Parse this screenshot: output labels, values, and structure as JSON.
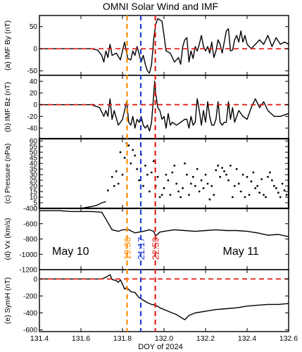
{
  "chart_data": {
    "type": "line",
    "title": "OMNI Solar Wind and IMF",
    "xlabel": "DOY of 2024",
    "xlim": [
      131.4,
      132.6
    ],
    "xticks": [
      131.4,
      131.6,
      131.8,
      132.0,
      132.2,
      132.4,
      132.6
    ],
    "xtick_labels": [
      "131.4",
      "131.6",
      "131.8",
      "132.0",
      "132.2",
      "132.4",
      "132.6"
    ],
    "event_lines": [
      {
        "x": 131.822,
        "label": "19:36",
        "color": "#ff8c00"
      },
      {
        "x": 131.888,
        "label": "21:17",
        "color": "#1f3fd6"
      },
      {
        "x": 131.958,
        "label": "22:59",
        "color": "#e0201b"
      }
    ],
    "date_labels": [
      {
        "text": "May 10",
        "x": 131.55
      },
      {
        "text": "May 11",
        "x": 132.37
      }
    ],
    "panels": [
      {
        "ylabel": "(a) IMF By (nT)",
        "ylim": [
          -60,
          75
        ],
        "yticks": [
          -50,
          0,
          50
        ],
        "zero_line": 0,
        "series": [
          {
            "style": "line",
            "x": [
              131.4,
              131.55,
              131.65,
              131.68,
              131.7,
              131.71,
              131.72,
              131.73,
              131.74,
              131.75,
              131.77,
              131.79,
              131.81,
              131.825,
              131.84,
              131.85,
              131.86,
              131.87,
              131.88,
              131.89,
              131.9,
              131.91,
              131.92,
              131.93,
              131.94,
              131.95,
              131.96,
              131.97,
              131.99,
              132.0,
              132.01,
              132.03,
              132.05,
              132.07,
              132.08,
              132.09,
              132.1,
              132.11,
              132.12,
              132.13,
              132.14,
              132.15,
              132.16,
              132.17,
              132.18,
              132.19,
              132.2,
              132.21,
              132.22,
              132.23,
              132.24,
              132.25,
              132.26,
              132.27,
              132.28,
              132.3,
              132.31,
              132.32,
              132.33,
              132.34,
              132.35,
              132.36,
              132.37,
              132.38,
              132.39,
              132.4,
              132.42,
              132.44,
              132.46,
              132.48,
              132.5,
              132.52,
              132.54,
              132.56,
              132.58,
              132.6
            ],
            "y": [
              0,
              0,
              0,
              -3,
              -15,
              -30,
              -5,
              -20,
              10,
              -15,
              -10,
              -25,
              15,
              -22,
              -25,
              -5,
              -15,
              5,
              -12,
              -30,
              -15,
              -35,
              -50,
              -55,
              -35,
              20,
              55,
              68,
              62,
              30,
              -5,
              -10,
              -30,
              -20,
              -35,
              5,
              20,
              25,
              -30,
              -5,
              -22,
              5,
              -5,
              10,
              30,
              5,
              -5,
              5,
              -10,
              15,
              -20,
              -5,
              20,
              10,
              -10,
              40,
              45,
              -5,
              -3,
              20,
              30,
              15,
              40,
              15,
              30,
              10,
              0,
              10,
              20,
              10,
              30,
              5,
              25,
              10,
              15,
              10
            ]
          }
        ]
      },
      {
        "ylabel": "(b) IMF Bz (nT)",
        "ylim": [
          -58,
          50
        ],
        "yticks": [
          -40,
          -20,
          0,
          20,
          40
        ],
        "zero_line": 0,
        "series": [
          {
            "style": "line",
            "x": [
              131.4,
              131.55,
              131.65,
              131.69,
              131.71,
              131.72,
              131.73,
              131.74,
              131.75,
              131.76,
              131.78,
              131.8,
              131.82,
              131.83,
              131.84,
              131.85,
              131.86,
              131.87,
              131.88,
              131.89,
              131.9,
              131.91,
              131.92,
              131.93,
              131.94,
              131.95,
              131.955,
              131.96,
              131.97,
              131.98,
              131.99,
              132.0,
              132.01,
              132.02,
              132.03,
              132.04,
              132.06,
              132.08,
              132.1,
              132.11,
              132.12,
              132.13,
              132.14,
              132.15,
              132.16,
              132.17,
              132.18,
              132.19,
              132.2,
              132.21,
              132.22,
              132.23,
              132.24,
              132.25,
              132.26,
              132.27,
              132.28,
              132.29,
              132.3,
              132.31,
              132.32,
              132.33,
              132.34,
              132.36,
              132.38,
              132.4,
              132.42,
              132.44,
              132.46,
              132.48,
              132.5,
              132.53,
              132.56,
              132.6
            ],
            "y": [
              0,
              0,
              0,
              -5,
              -20,
              -10,
              -20,
              10,
              -25,
              -10,
              -35,
              -25,
              5,
              -30,
              -35,
              -20,
              -40,
              -25,
              -30,
              -20,
              -35,
              -40,
              -35,
              -45,
              -30,
              15,
              40,
              20,
              -5,
              -10,
              -25,
              -20,
              -40,
              -15,
              -35,
              -30,
              -35,
              -30,
              -25,
              -25,
              -40,
              -20,
              -35,
              -30,
              10,
              -10,
              -35,
              -10,
              -30,
              5,
              -20,
              -35,
              -35,
              -25,
              5,
              -30,
              -35,
              -30,
              -30,
              5,
              -25,
              -5,
              -30,
              -10,
              -20,
              -25,
              -5,
              10,
              -5,
              5,
              -10,
              -20,
              -20,
              -15
            ]
          }
        ]
      },
      {
        "ylabel": "(c) Pressure (nPa)",
        "ylim": [
          0,
          62
        ],
        "yticks": [
          0,
          5,
          10,
          15,
          20,
          25,
          30,
          35,
          40,
          45,
          50,
          55,
          60
        ],
        "series": [
          {
            "style": "line",
            "x": [
              131.4,
              131.5,
              131.6,
              131.63,
              131.66,
              131.68,
              131.7,
              131.72
            ],
            "y": [
              0,
              0,
              0,
              1,
              2,
              3,
              5,
              6
            ]
          },
          {
            "style": "dots",
            "x": [
              131.73,
              131.75,
              131.76,
              131.77,
              131.78,
              131.79,
              131.8,
              131.81,
              131.82,
              131.83,
              131.84,
              131.85,
              131.86,
              131.87,
              131.88,
              131.89,
              131.9,
              131.91,
              131.92,
              131.93,
              131.94,
              131.95,
              131.96,
              131.97,
              131.98,
              131.99,
              132.0,
              132.01,
              132.02,
              132.03,
              132.04,
              132.05,
              132.06,
              132.07,
              132.08,
              132.09,
              132.1,
              132.11,
              132.12,
              132.13,
              132.14,
              132.15,
              132.16,
              132.17,
              132.18,
              132.19,
              132.2,
              132.21,
              132.22,
              132.23,
              132.24,
              132.25,
              132.26,
              132.27,
              132.28,
              132.29,
              132.3,
              132.31,
              132.32,
              132.33,
              132.34,
              132.35,
              132.36,
              132.37,
              132.38,
              132.39,
              132.4,
              132.41,
              132.42,
              132.43,
              132.44,
              132.45,
              132.46,
              132.47,
              132.48,
              132.49,
              132.5,
              132.51,
              132.52,
              132.53,
              132.54,
              132.55,
              132.56,
              132.57,
              132.58,
              132.59,
              132.6
            ],
            "y": [
              16,
              28,
              20,
              33,
              22,
              50,
              30,
              45,
              58,
              56,
              40,
              52,
              47,
              35,
              25,
              48,
              20,
              38,
              30,
              15,
              32,
              42,
              20,
              28,
              10,
              12,
              18,
              30,
              25,
              12,
              32,
              38,
              22,
              15,
              10,
              18,
              40,
              30,
              12,
              22,
              28,
              20,
              35,
              15,
              25,
              18,
              30,
              22,
              8,
              20,
              12,
              34,
              38,
              28,
              36,
              33,
              30,
              25,
              38,
              10,
              20,
              35,
              22,
              15,
              30,
              10,
              28,
              12,
              24,
              32,
              18,
              20,
              14,
              26,
              12,
              10,
              28,
              32,
              25,
              20,
              18,
              14,
              10,
              22,
              16,
              12,
              18
            ]
          }
        ]
      },
      {
        "ylabel": "(d) Vx (km/s)",
        "ylim": [
          -1200,
          -400
        ],
        "yticks": [
          -1200,
          -1000,
          -800,
          -600,
          -400
        ],
        "series": [
          {
            "style": "line",
            "x": [
              131.4,
              131.45,
              131.5,
              131.55,
              131.6,
              131.65,
              131.7,
              131.72,
              131.75,
              131.78,
              131.8,
              131.83,
              131.86,
              131.9,
              131.93,
              131.95,
              131.96,
              131.98,
              132.0,
              132.05,
              132.1,
              132.15,
              132.2,
              132.25,
              132.3,
              132.35,
              132.4,
              132.45,
              132.5,
              132.55,
              132.6
            ],
            "y": [
              -430,
              -430,
              -430,
              -440,
              -440,
              -440,
              -450,
              -540,
              -680,
              -700,
              -680,
              -680,
              -720,
              -700,
              -680,
              -700,
              -760,
              -710,
              -700,
              -680,
              -690,
              -700,
              -690,
              -680,
              -690,
              -690,
              -700,
              -720,
              -750,
              -740,
              -770
            ]
          }
        ]
      },
      {
        "ylabel": "(e) SymH (nT)",
        "ylim": [
          -620,
          110
        ],
        "yticks": [
          -600,
          -400,
          -200,
          0
        ],
        "zero_line": 0,
        "series": [
          {
            "style": "line",
            "x": [
              131.4,
              131.5,
              131.6,
              131.7,
              131.72,
              131.74,
              131.75,
              131.77,
              131.78,
              131.79,
              131.8,
              131.81,
              131.82,
              131.84,
              131.86,
              131.88,
              131.9,
              131.92,
              131.94,
              131.96,
              131.98,
              132.0,
              132.02,
              132.04,
              132.06,
              132.08,
              132.1,
              132.12,
              132.15,
              132.2,
              132.25,
              132.3,
              132.35,
              132.4,
              132.45,
              132.5,
              132.55,
              132.6
            ],
            "y": [
              0,
              0,
              0,
              0,
              20,
              50,
              -5,
              -20,
              -40,
              -10,
              -60,
              -120,
              -100,
              -150,
              -160,
              -220,
              -250,
              -280,
              -300,
              -310,
              -340,
              -360,
              -380,
              -400,
              -420,
              -450,
              -480,
              -430,
              -400,
              -380,
              -360,
              -350,
              -340,
              -320,
              -310,
              -300,
              -300,
              -290
            ]
          }
        ]
      }
    ]
  }
}
